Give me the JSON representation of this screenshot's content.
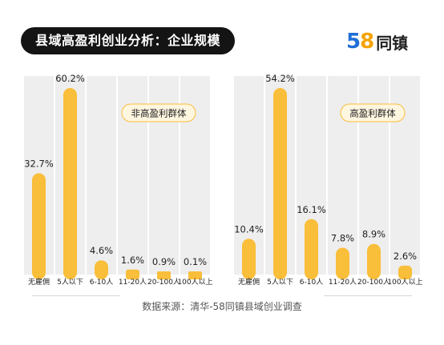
{
  "header": {
    "title": "县域高盈利创业分析：企业规模",
    "logo_digits_1": "5",
    "logo_digits_2": "8",
    "logo_text": "同镇"
  },
  "footer": {
    "source": "数据来源：清华-58同镇县域创业调查"
  },
  "colors": {
    "bar": "#F9BE3A",
    "column_bg": "#EEEEEE",
    "pill_bg": "#141414",
    "legend_bg": "#FFF6E0"
  },
  "chart_data": [
    {
      "type": "bar",
      "categories": [
        "无雇佣",
        "5人以下",
        "6-10人",
        "11-20人",
        "20-100人",
        "100人以上"
      ],
      "values": [
        32.7,
        60.2,
        4.6,
        1.6,
        0.9,
        0.1
      ],
      "value_labels": [
        "32.7%",
        "60.2%",
        "4.6%",
        "1.6%",
        "0.9%",
        "0.1%"
      ],
      "legend": "非高盈利群体",
      "ylim": [
        0,
        60.2
      ],
      "grid": false
    },
    {
      "type": "bar",
      "categories": [
        "无雇佣",
        "5人以下",
        "6-10人",
        "11-20人",
        "20-100人",
        "100人以上"
      ],
      "values": [
        10.4,
        54.2,
        16.1,
        7.8,
        8.9,
        2.6
      ],
      "value_labels": [
        "10.4%",
        "54.2%",
        "16.1%",
        "7.8%",
        "8.9%",
        "2.6%"
      ],
      "legend": "高盈利群体",
      "ylim": [
        0,
        54.2
      ],
      "grid": false
    }
  ]
}
